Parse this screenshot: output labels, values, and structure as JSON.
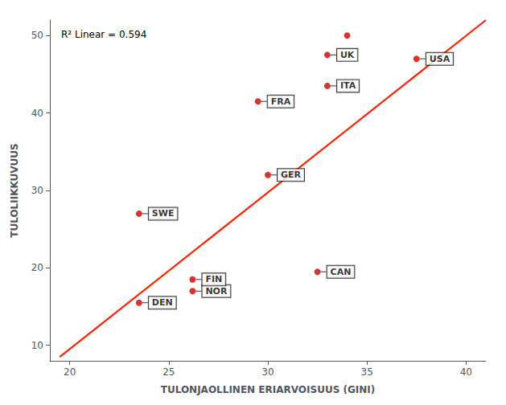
{
  "chart_data": {
    "type": "scatter",
    "xlabel": "TULONJAOLLINEN ERIARVOISUUS (GINI)",
    "ylabel": "TULOLIIKKUVUUS",
    "annotations": [
      "R² Linear = 0.594"
    ],
    "xlim": [
      19,
      41
    ],
    "ylim": [
      8,
      52
    ],
    "xticks": [
      20,
      25,
      30,
      35,
      40
    ],
    "yticks": [
      10,
      20,
      30,
      40,
      50
    ],
    "grid": false,
    "series": [
      {
        "type": "scatter",
        "color": "#CC0000",
        "x": [
          23.5,
          23.5,
          26.2,
          26.2,
          30.0,
          29.5,
          33.0,
          33.0,
          32.5,
          37.5,
          34.0
        ],
        "y": [
          15.5,
          27.0,
          17.0,
          18.5,
          32.0,
          41.5,
          43.5,
          47.5,
          19.5,
          47.0,
          50.0
        ],
        "labels": [
          "DEN",
          "SWE",
          "NOR",
          "FIN",
          "GER",
          "FRA",
          "ITA",
          "UK",
          "CAN",
          "USA",
          null
        ]
      },
      {
        "type": "line",
        "color": "#FF2200",
        "x": [
          19.5,
          41.0
        ],
        "y": [
          8.5,
          52.0
        ]
      }
    ]
  }
}
